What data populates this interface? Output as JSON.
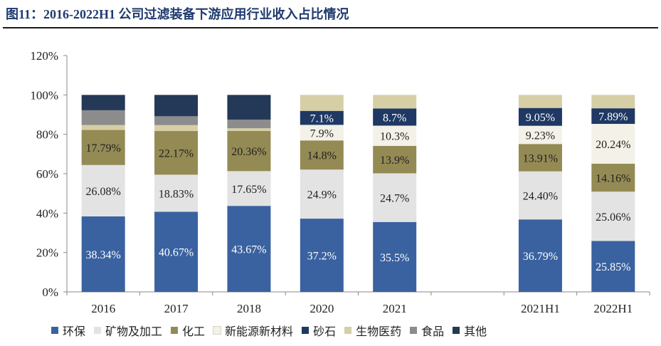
{
  "figure": {
    "title": "图11：2016-2022H1 公司过滤装备下游应用行业收入占比情况"
  },
  "chart_data": {
    "type": "bar",
    "stacked": true,
    "categories": [
      "2016",
      "2017",
      "2018",
      "2020",
      "2021",
      "",
      "2021H1",
      "2022H1"
    ],
    "ylim": [
      0,
      120
    ],
    "yticks": [
      "0%",
      "20%",
      "40%",
      "60%",
      "80%",
      "100%",
      "120%"
    ],
    "grid": false,
    "legend_position": "bottom",
    "series": [
      {
        "name": "环保",
        "color": "#3a62a0",
        "label_color": "#ffffff",
        "values": [
          38.34,
          40.67,
          43.67,
          37.2,
          35.5,
          null,
          36.79,
          25.85
        ],
        "labels": [
          "38.34%",
          "40.67%",
          "43.67%",
          "37.2%",
          "35.5%",
          "",
          "36.79%",
          "25.85%"
        ]
      },
      {
        "name": "矿物及加工",
        "color": "#e3e3e3",
        "label_color": "#222222",
        "values": [
          26.08,
          18.83,
          17.65,
          24.9,
          24.7,
          null,
          24.4,
          25.06
        ],
        "labels": [
          "26.08%",
          "18.83%",
          "17.65%",
          "24.9%",
          "24.7%",
          "",
          "24.40%",
          "25.06%"
        ]
      },
      {
        "name": "化工",
        "color": "#948a54",
        "label_color": "#222222",
        "values": [
          17.79,
          22.17,
          20.36,
          14.8,
          13.9,
          null,
          13.91,
          14.16
        ],
        "labels": [
          "17.79%",
          "22.17%",
          "20.36%",
          "14.8%",
          "13.9%",
          "",
          "13.91%",
          "14.16%"
        ]
      },
      {
        "name": "新能源新材料",
        "color": "#f3f1e8",
        "label_color": "#222222",
        "values": [
          0,
          0,
          0,
          7.9,
          10.3,
          null,
          9.23,
          20.24
        ],
        "labels": [
          "",
          "",
          "",
          "7.9%",
          "10.3%",
          "",
          "9.23%",
          "20.24%"
        ]
      },
      {
        "name": "砂石",
        "color": "#1f3864",
        "label_color": "#ffffff",
        "values": [
          0,
          0,
          0,
          7.1,
          8.7,
          null,
          9.05,
          7.89
        ],
        "labels": [
          "",
          "",
          "",
          "7.1%",
          "8.7%",
          "",
          "9.05%",
          "7.89%"
        ]
      },
      {
        "name": "生物医药",
        "color": "#d6cfa6",
        "label_color": "#222222",
        "values": [
          2.5,
          3.0,
          1.4,
          8.1,
          6.9,
          null,
          6.62,
          6.8
        ],
        "labels": [
          "",
          "",
          "",
          "",
          "",
          "",
          "",
          ""
        ]
      },
      {
        "name": "食品",
        "color": "#8c8c8c",
        "label_color": "#ffffff",
        "values": [
          7.5,
          4.5,
          4.4,
          0,
          0,
          null,
          0,
          0
        ],
        "labels": [
          "",
          "",
          "",
          "",
          "",
          "",
          "",
          ""
        ]
      },
      {
        "name": "其他",
        "color": "#243857",
        "label_color": "#ffffff",
        "values": [
          7.79,
          10.83,
          12.52,
          0,
          0,
          null,
          0,
          0
        ],
        "labels": [
          "",
          "",
          "",
          "",
          "",
          "",
          "",
          ""
        ]
      }
    ]
  }
}
